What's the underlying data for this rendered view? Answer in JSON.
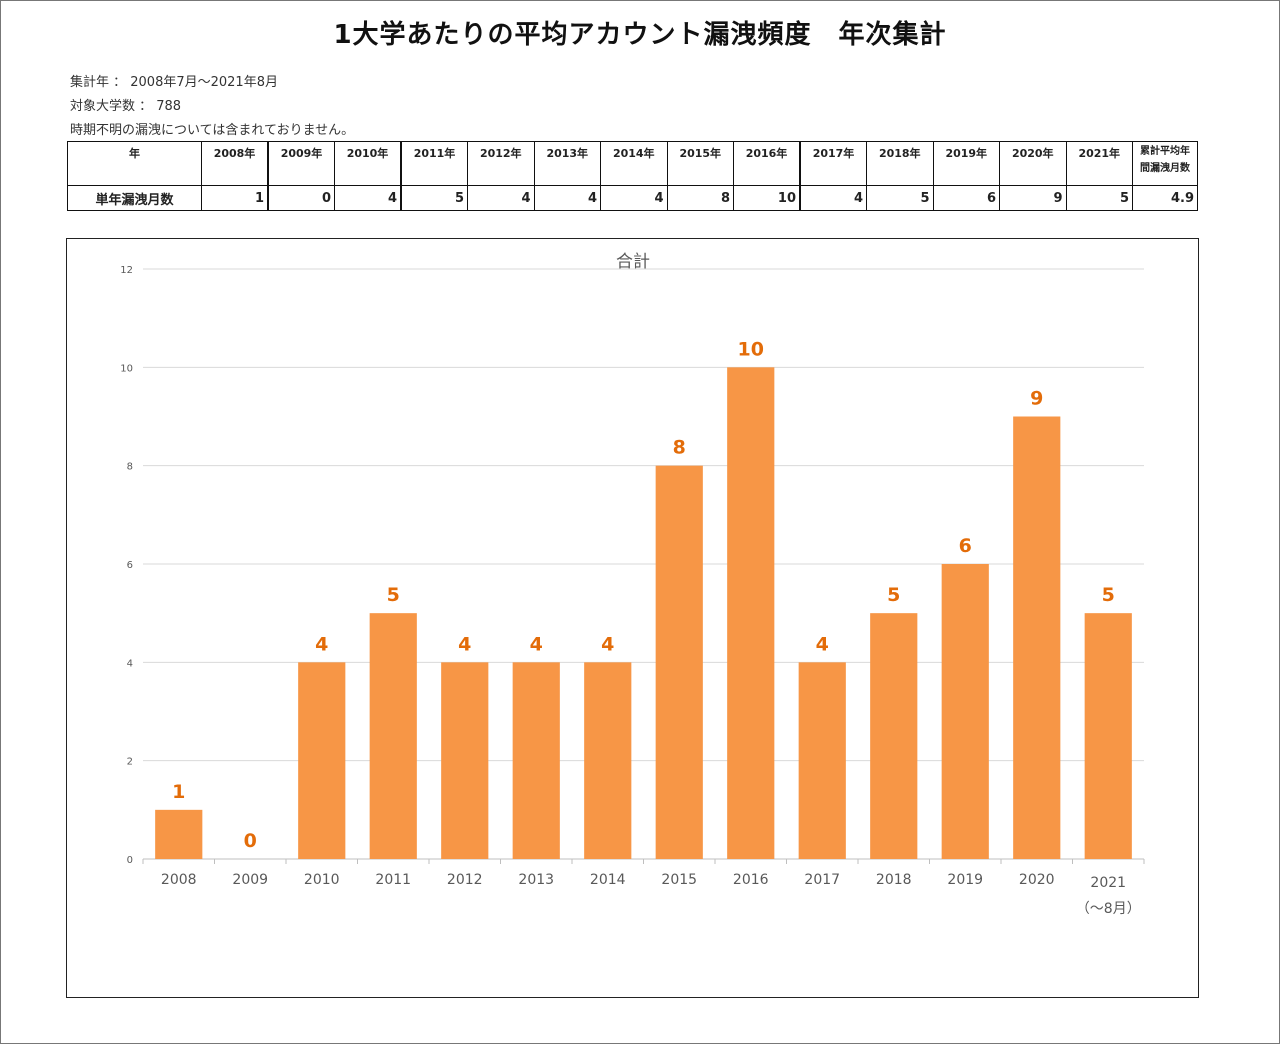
{
  "title": "1大学あたりの平均アカウント漏洩頻度　年次集計",
  "meta": {
    "period": "集計年 ： 2008年7月～2021年8月",
    "universities": "対象大学数 ： 788",
    "note": "時期不明の漏洩については含まれておりません。"
  },
  "table": {
    "header_label": "年",
    "row_label": "単年漏洩月数",
    "years": [
      "2008年",
      "2009年",
      "2010年",
      "2011年",
      "2012年",
      "2013年",
      "2014年",
      "2015年",
      "2016年",
      "2017年",
      "2018年",
      "2019年",
      "2020年",
      "2021年"
    ],
    "values": [
      "1",
      "0",
      "4",
      "5",
      "4",
      "4",
      "4",
      "8",
      "10",
      "4",
      "5",
      "6",
      "9",
      "5"
    ],
    "avg_header_line1": "累計平均年",
    "avg_header_line2": "間漏洩月数",
    "avg_value": "4.9"
  },
  "chart_data": {
    "type": "bar",
    "title": "合計",
    "categories": [
      "2008",
      "2009",
      "2010",
      "2011",
      "2012",
      "2013",
      "2014",
      "2015",
      "2016",
      "2017",
      "2018",
      "2019",
      "2020",
      "2021"
    ],
    "category_sublabels": {
      "2021": "（～8月）"
    },
    "values": [
      1,
      0,
      4,
      5,
      4,
      4,
      4,
      8,
      10,
      4,
      5,
      6,
      9,
      5
    ],
    "ylim": [
      0,
      12
    ],
    "yticks": [
      0,
      2,
      4,
      6,
      8,
      10,
      12
    ],
    "grid": true,
    "legend": "none",
    "colors": {
      "bar": "#F79646",
      "label": "#E36C09",
      "grid": "#D9D9D9",
      "axis_text": "#595959"
    }
  }
}
